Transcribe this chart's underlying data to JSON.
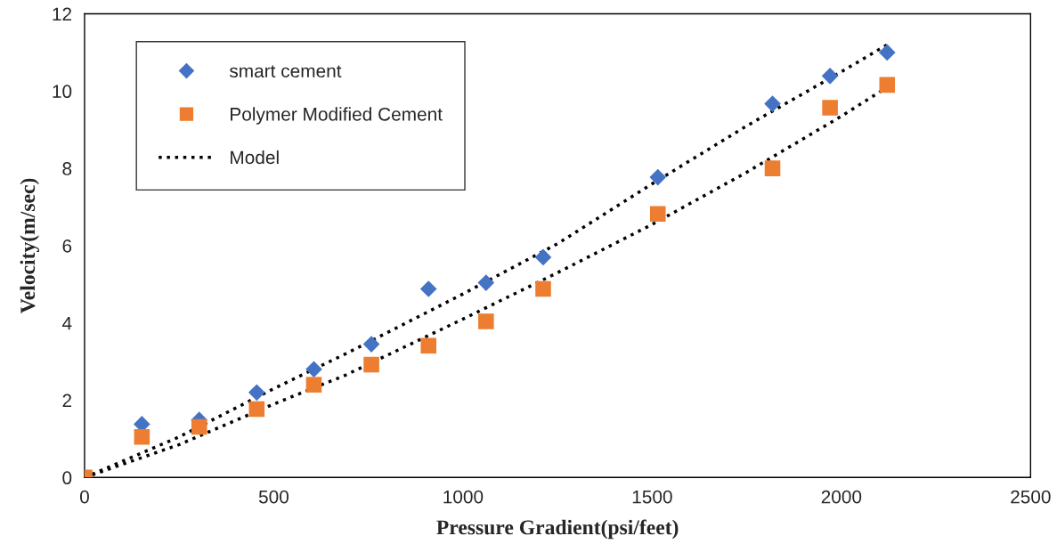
{
  "chart_data": {
    "type": "scatter",
    "xlabel": "Pressure Gradient(psi/feet)",
    "ylabel": "Velocity(m/sec)",
    "xlim": [
      0,
      2500
    ],
    "xticks": [
      0,
      500,
      1000,
      1500,
      2000,
      2500
    ],
    "ylim": [
      0,
      12
    ],
    "yticks": [
      0,
      2,
      4,
      6,
      8,
      10,
      12
    ],
    "grid": false,
    "legend": "top left",
    "series": [
      {
        "name": "smart cement",
        "color": "#4472c4",
        "marker": "diamond",
        "x": [
          151.5,
          303,
          455,
          606,
          758,
          909,
          1061,
          1212,
          1515,
          1818,
          1970,
          2121
        ],
        "values": [
          1.38,
          1.49,
          2.2,
          2.8,
          3.45,
          4.88,
          5.04,
          5.7,
          7.77,
          9.67,
          10.39,
          11.0
        ]
      },
      {
        "name": "Polymer Modified Cement",
        "color": "#ed7d31",
        "marker": "square",
        "x": [
          0,
          151.5,
          303,
          455,
          606,
          758,
          909,
          1061,
          1212,
          1515,
          1818,
          1970,
          2121
        ],
        "values": [
          0,
          1.05,
          1.31,
          1.77,
          2.4,
          2.92,
          3.41,
          4.04,
          4.88,
          6.82,
          8.0,
          9.57,
          10.16
        ]
      },
      {
        "name": "Model",
        "type": "line",
        "color": "#000000",
        "line_style": "dotted",
        "marker": "none",
        "x": [
          0,
          250,
          500,
          690,
          1000,
          1250,
          1500,
          1750,
          2000,
          2121
        ],
        "values": [
          0,
          1.05,
          2.3,
          3.2,
          4.75,
          6.05,
          7.6,
          9.1,
          10.5,
          11.2
        ]
      },
      {
        "type": "line",
        "color": "#000000",
        "line_style": "dotted",
        "marker": "none",
        "x": [
          0,
          250,
          500,
          690,
          1000,
          1250,
          1500,
          1750,
          2000,
          2121
        ],
        "values": [
          0,
          0.85,
          1.9,
          2.65,
          4.1,
          5.3,
          6.55,
          7.9,
          9.35,
          10.1
        ]
      }
    ]
  }
}
